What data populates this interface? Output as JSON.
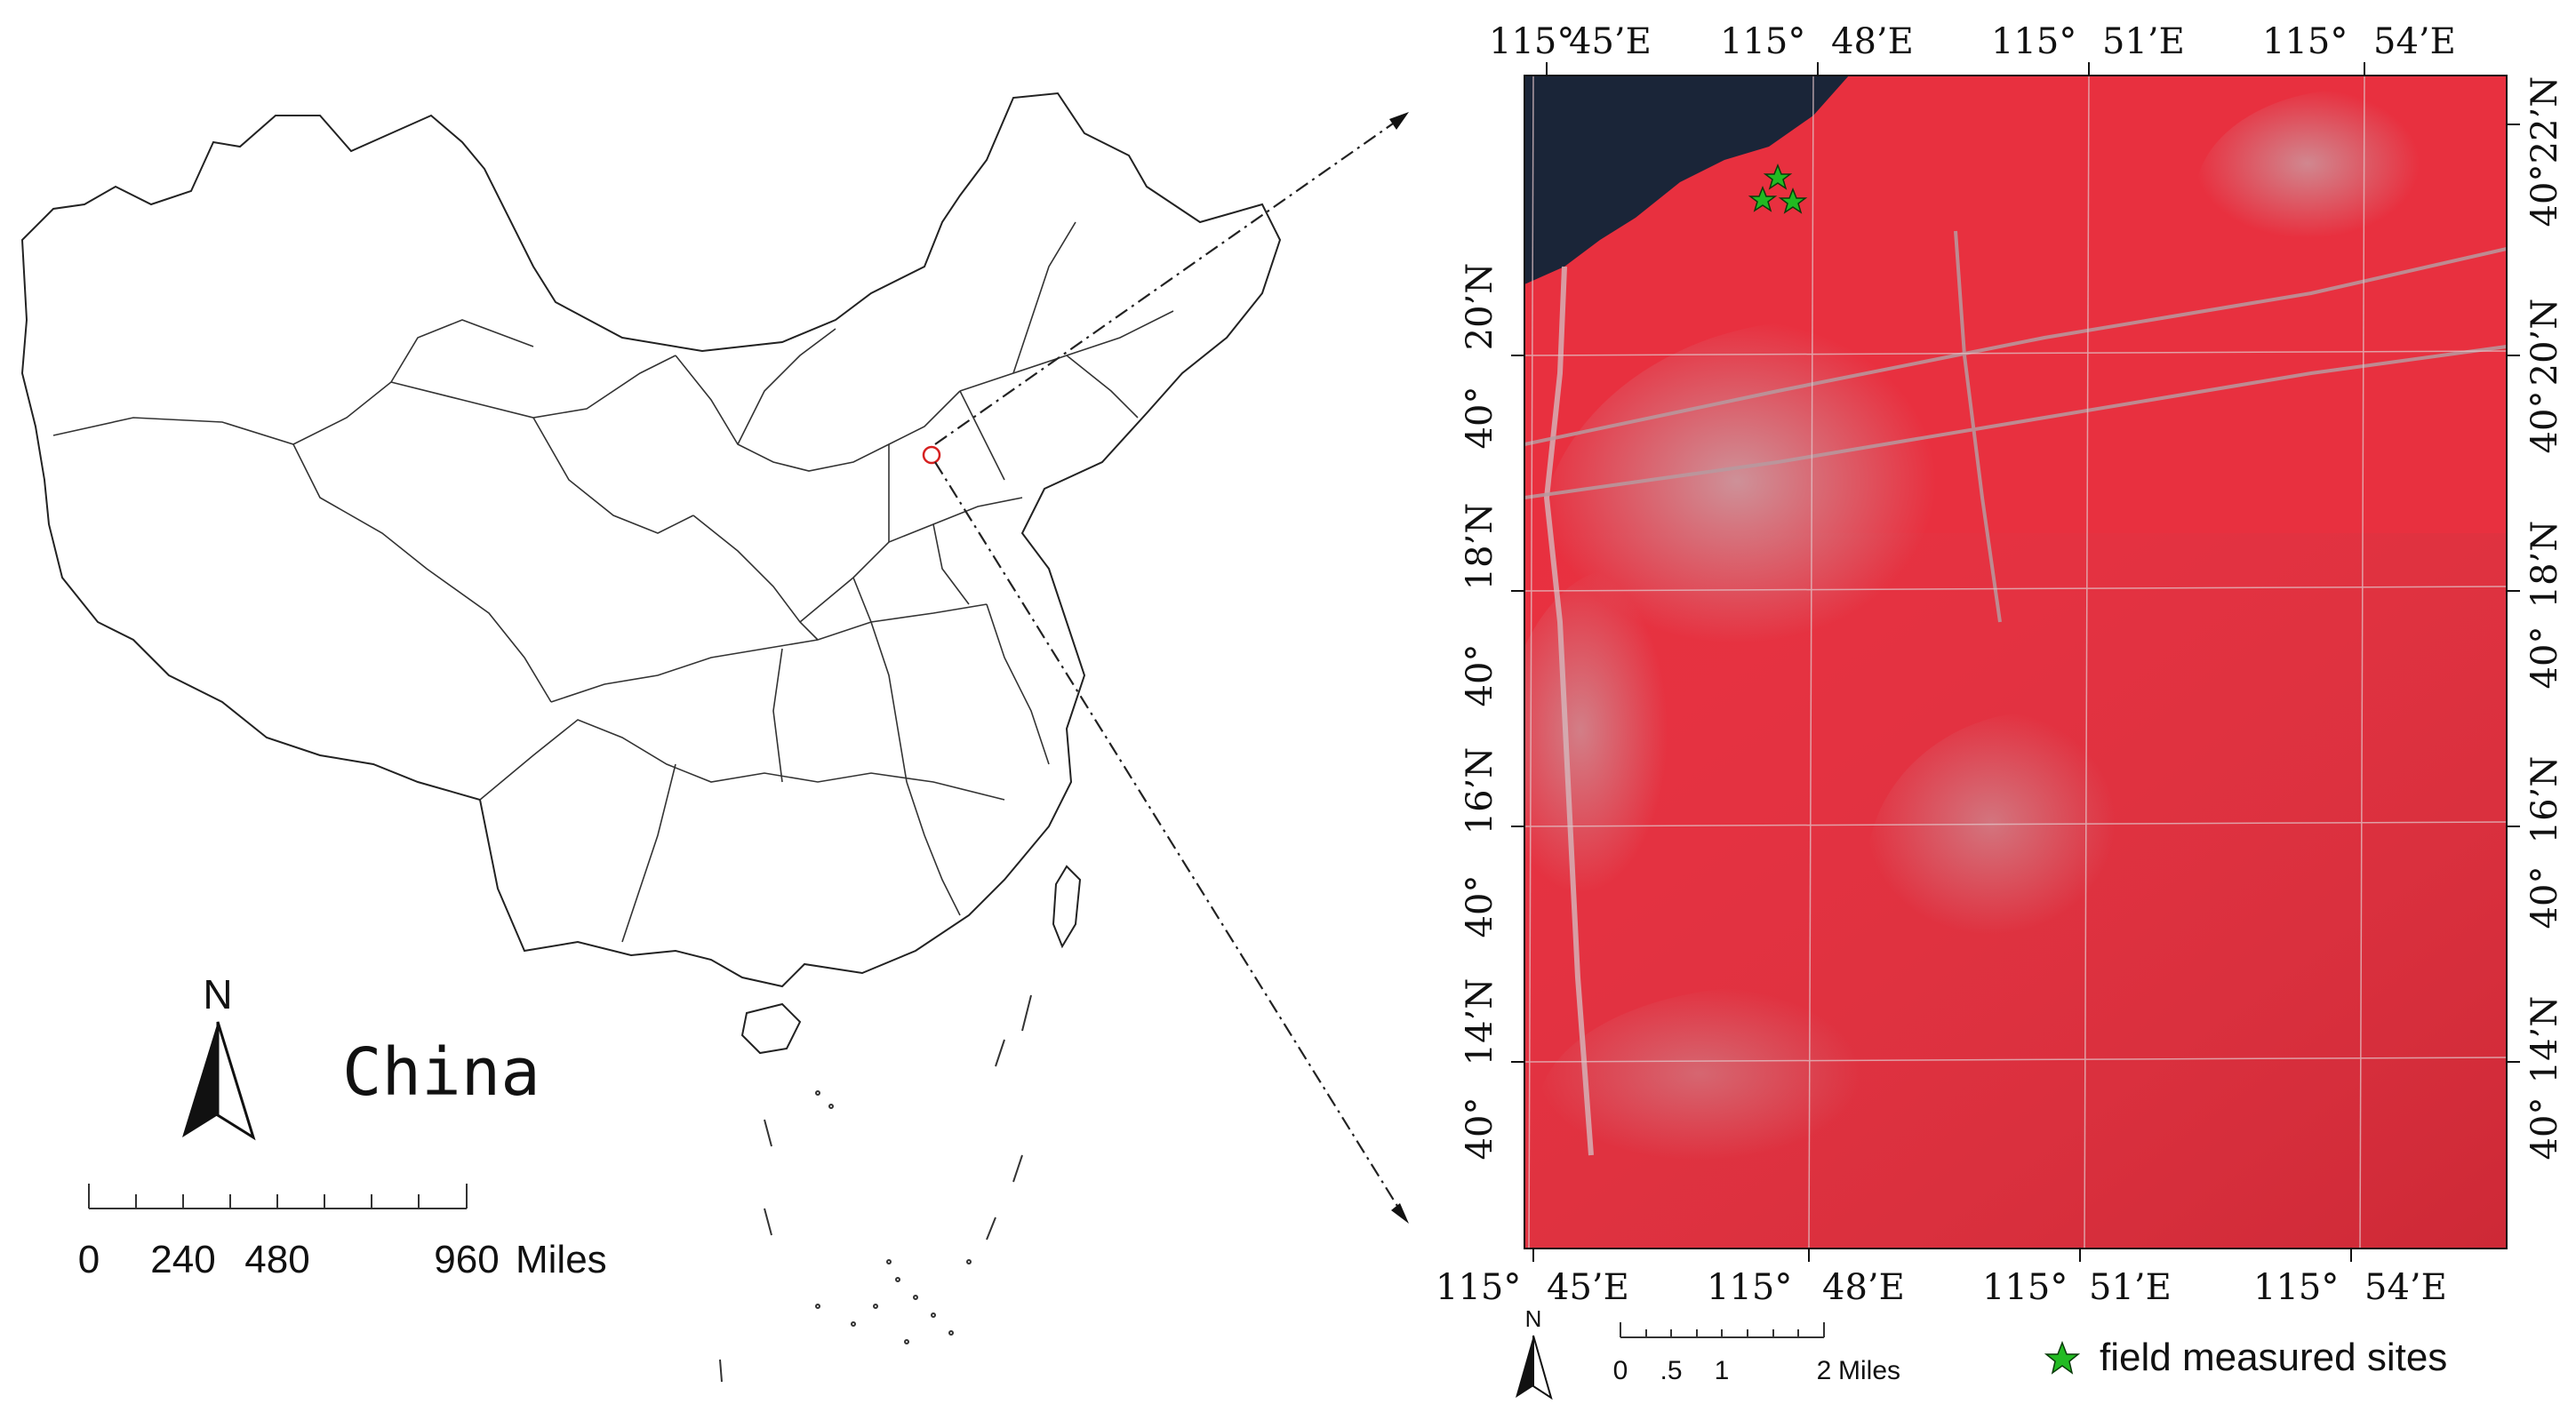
{
  "overview_map": {
    "region_label": "China",
    "north_letter": "N",
    "scale_bar": {
      "labels": [
        "0",
        "240",
        "480",
        "960"
      ],
      "unit": "Miles"
    }
  },
  "detail_map": {
    "top_ticks": [
      {
        "deg": "115°",
        "min": "45’E"
      },
      {
        "deg": "115°",
        "min": "48’E"
      },
      {
        "deg": "115°",
        "min": "51’E"
      },
      {
        "deg": "115°",
        "min": "54’E"
      }
    ],
    "bottom_ticks": [
      {
        "deg": "115°",
        "min": "45’E"
      },
      {
        "deg": "115°",
        "min": "48’E"
      },
      {
        "deg": "115°",
        "min": "51’E"
      },
      {
        "deg": "115°",
        "min": "54’E"
      }
    ],
    "left_ticks": [
      {
        "deg": "40°",
        "min": "20’N"
      },
      {
        "deg": "40°",
        "min": "18’N"
      },
      {
        "deg": "40°",
        "min": "16’N"
      },
      {
        "deg": "40°",
        "min": "14’N"
      }
    ],
    "right_ticks": [
      {
        "deg": "40°",
        "min": "22’N"
      },
      {
        "deg": "40°",
        "min": "20’N"
      },
      {
        "deg": "40°",
        "min": "18’N"
      },
      {
        "deg": "40°",
        "min": "16’N"
      },
      {
        "deg": "40°",
        "min": "14’N"
      }
    ],
    "north_letter": "N",
    "scale_bar": {
      "labels": [
        "0",
        ".5",
        "1",
        "2"
      ],
      "unit": "Miles"
    },
    "legend": {
      "label": "field measured sites",
      "marker_color": "#22bb22"
    },
    "image_colors": {
      "vegetation": "#e8303f",
      "bare": "#c9a2a8",
      "water": "#1a2538"
    }
  }
}
